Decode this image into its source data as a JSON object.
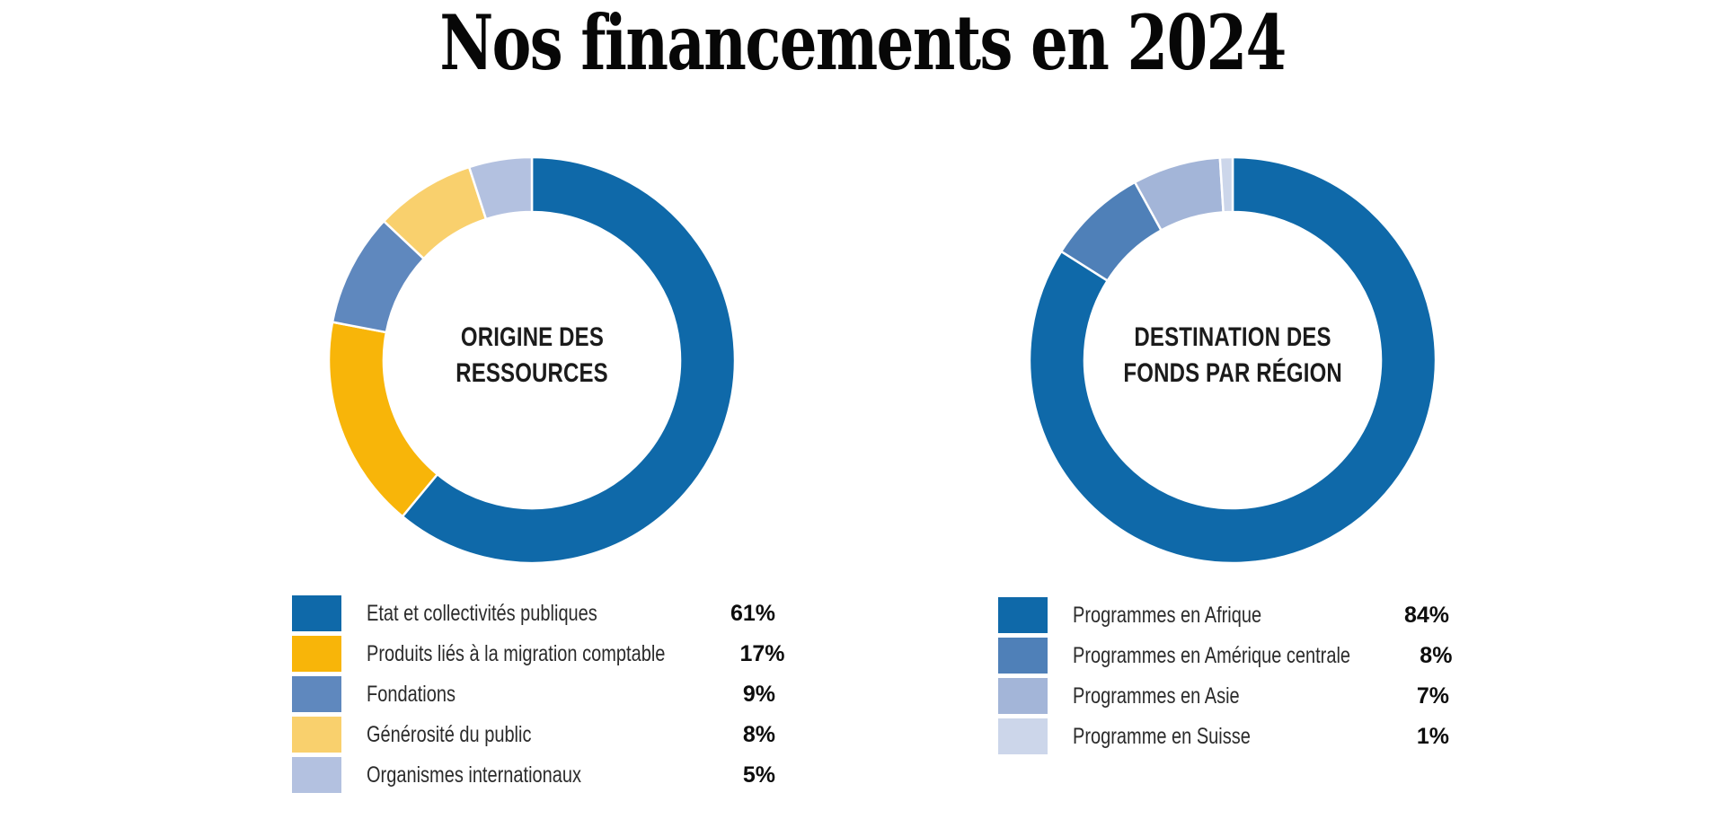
{
  "page": {
    "title": "Nos financements en 2024",
    "background_color": "#ffffff",
    "title_color": "#070707"
  },
  "chart_data": [
    {
      "type": "pie",
      "subtype": "donut",
      "title": "ORIGINE DES RESSOURCES",
      "center_label_lines": [
        "ORIGINE DES",
        "RESSOURCES"
      ],
      "categories": [
        "Etat et collectivités publiques",
        "Produits liés à la migration comptable",
        "Fondations",
        "Générosité du public",
        "Organismes internationaux"
      ],
      "values": [
        61,
        17,
        9,
        8,
        5
      ],
      "unit": "%",
      "percent_labels": [
        "61%",
        "17%",
        "9%",
        "8%",
        "5%"
      ],
      "colors": [
        "#0f69a9",
        "#f8b509",
        "#5f88be",
        "#f9d06d",
        "#b3c1e0"
      ],
      "start_angle_deg": 0,
      "direction": "clockwise",
      "inner_radius_ratio": 0.73,
      "separator_color": "#ffffff",
      "legend_position": "bottom-left"
    },
    {
      "type": "pie",
      "subtype": "donut",
      "title": "DESTINATION DES FONDS PAR RÉGION",
      "center_label_lines": [
        "DESTINATION DES",
        "FONDS PAR RÉGION"
      ],
      "categories": [
        "Programmes en Afrique",
        "Programmes en Amérique centrale",
        "Programmes en Asie",
        "Programme en Suisse"
      ],
      "values": [
        84,
        8,
        7,
        1
      ],
      "unit": "%",
      "percent_labels": [
        "84%",
        "8%",
        "7%",
        "1%"
      ],
      "colors": [
        "#0f69a9",
        "#4f80b8",
        "#a3b5d8",
        "#ccd6ea"
      ],
      "start_angle_deg": 0,
      "direction": "clockwise",
      "inner_radius_ratio": 0.73,
      "separator_color": "#ffffff",
      "legend_position": "bottom-left"
    }
  ]
}
